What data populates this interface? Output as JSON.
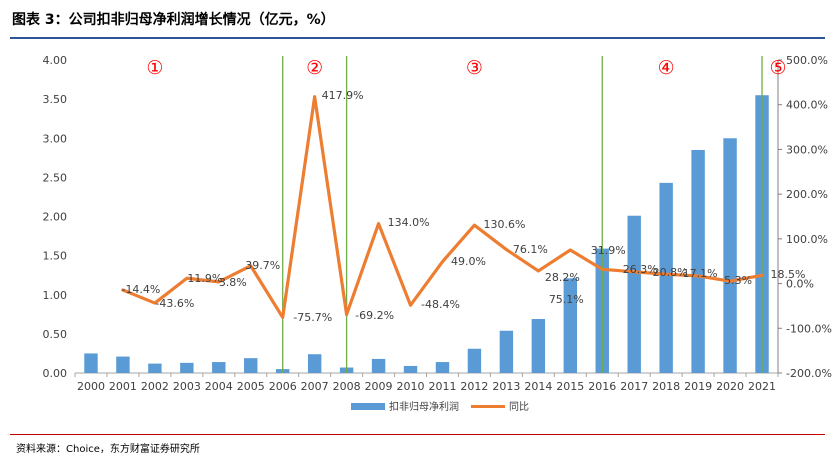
{
  "header": {
    "title": "图表 3：公司扣非归母净利润增长情况（亿元，%）"
  },
  "footer": {
    "source": "资料来源：Choice，东方财富证券研究所"
  },
  "chart_data": {
    "type": "bar",
    "title": "",
    "categories": [
      "2000",
      "2001",
      "2002",
      "2003",
      "2004",
      "2005",
      "2006",
      "2007",
      "2008",
      "2009",
      "2010",
      "2011",
      "2012",
      "2013",
      "2014",
      "2015",
      "2016",
      "2017",
      "2018",
      "2019",
      "2020",
      "2021"
    ],
    "series": [
      {
        "name": "扣非归母净利润",
        "type": "bar",
        "axis": "left",
        "color": "#5b9bd5",
        "values": [
          0.25,
          0.21,
          0.12,
          0.13,
          0.14,
          0.19,
          0.05,
          0.24,
          0.07,
          0.18,
          0.09,
          0.14,
          0.31,
          0.54,
          0.69,
          1.21,
          1.59,
          2.01,
          2.43,
          2.85,
          3.0,
          3.55
        ]
      },
      {
        "name": "同比",
        "type": "line",
        "axis": "right",
        "color": "#ed7d31",
        "values": [
          null,
          -14.4,
          -43.6,
          11.9,
          3.8,
          39.7,
          -75.7,
          417.9,
          -69.2,
          134.0,
          -48.4,
          49.0,
          130.6,
          76.1,
          28.2,
          75.1,
          31.9,
          26.3,
          20.8,
          17.1,
          5.3,
          18.5
        ],
        "labels": [
          "",
          "-14.4%",
          "-43.6%",
          "11.9%",
          "3.8%",
          "39.7%",
          "-75.7%",
          "417.9%",
          "-69.2%",
          "134.0%",
          "-48.4%",
          "49.0%",
          "130.6%",
          "76.1%",
          "28.2%",
          "75.1%",
          "31.9%",
          "26.3%",
          "20.8%",
          "17.1%",
          "5.3%",
          "18.5%"
        ]
      }
    ],
    "y_left": {
      "min": 0,
      "max": 4,
      "ticks": [
        "0.00",
        "0.50",
        "1.00",
        "1.50",
        "2.00",
        "2.50",
        "3.00",
        "3.50",
        "4.00"
      ]
    },
    "y_right": {
      "min": -200,
      "max": 500,
      "ticks": [
        "-200.0%",
        "-100.0%",
        "0.0%",
        "100.0%",
        "200.0%",
        "300.0%",
        "400.0%",
        "500.0%"
      ]
    },
    "phases": {
      "labels": [
        "①",
        "②",
        "③",
        "④",
        "⑤"
      ],
      "label_years": [
        "2002",
        "2007",
        "2012",
        "2018",
        "2021"
      ],
      "boundaries": [
        "2006",
        "2008",
        "2016",
        "2021"
      ],
      "label_color": "#ff0000",
      "line_color": "#70ad47"
    },
    "grid": false,
    "legend": "bottom"
  }
}
